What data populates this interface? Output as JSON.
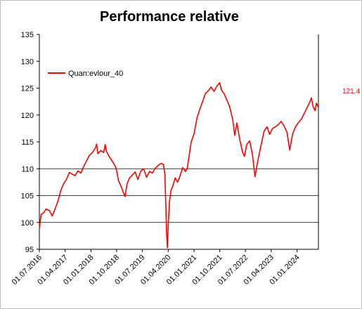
{
  "chart_data": {
    "type": "line",
    "title": "Performance relative",
    "xlabel": "",
    "ylabel": "",
    "ylim": [
      95,
      135
    ],
    "yticks": [
      95,
      100,
      105,
      110,
      115,
      120,
      125,
      130,
      135
    ],
    "gridlines_y": [
      95,
      100,
      105,
      110
    ],
    "xlim": [
      "2016-07-01",
      "2024-08-15"
    ],
    "xticks": [
      {
        "date": "2016-07-01",
        "label": "01.07.2016"
      },
      {
        "date": "2017-04-01",
        "label": "01.04.2017"
      },
      {
        "date": "2018-01-01",
        "label": "01.01.2018"
      },
      {
        "date": "2018-10-01",
        "label": "01.10.2018"
      },
      {
        "date": "2019-07-01",
        "label": "01.07.2019"
      },
      {
        "date": "2020-04-01",
        "label": "01.04.2020"
      },
      {
        "date": "2021-01-01",
        "label": "01.01.2021"
      },
      {
        "date": "2021-10-01",
        "label": "01.10.2021"
      },
      {
        "date": "2022-07-01",
        "label": "01.07.2022"
      },
      {
        "date": "2023-04-01",
        "label": "01.04.2023"
      },
      {
        "date": "2024-01-01",
        "label": "01.01.2024"
      }
    ],
    "legend_position": "top-left",
    "last_value_label": "121.4",
    "series": [
      {
        "name": "Quan:evlour_40",
        "color": "#ff0000",
        "points": [
          [
            "2016-07-01",
            99.0
          ],
          [
            "2016-07-20",
            101.5
          ],
          [
            "2016-08-15",
            101.8
          ],
          [
            "2016-09-10",
            102.5
          ],
          [
            "2016-10-15",
            102.2
          ],
          [
            "2016-11-15",
            101.2
          ],
          [
            "2016-12-15",
            102.5
          ],
          [
            "2017-01-15",
            104.0
          ],
          [
            "2017-02-15",
            106.0
          ],
          [
            "2017-03-15",
            107.2
          ],
          [
            "2017-04-15",
            108.0
          ],
          [
            "2017-05-15",
            109.3
          ],
          [
            "2017-06-15",
            109.0
          ],
          [
            "2017-07-15",
            108.7
          ],
          [
            "2017-08-15",
            109.6
          ],
          [
            "2017-09-15",
            109.2
          ],
          [
            "2017-10-15",
            110.4
          ],
          [
            "2017-11-15",
            111.5
          ],
          [
            "2017-12-15",
            112.5
          ],
          [
            "2018-01-15",
            113.0
          ],
          [
            "2018-02-15",
            113.8
          ],
          [
            "2018-03-01",
            114.6
          ],
          [
            "2018-03-15",
            112.8
          ],
          [
            "2018-04-15",
            113.4
          ],
          [
            "2018-05-15",
            113.0
          ],
          [
            "2018-06-01",
            114.5
          ],
          [
            "2018-06-15",
            113.2
          ],
          [
            "2018-07-15",
            112.2
          ],
          [
            "2018-08-15",
            111.4
          ],
          [
            "2018-09-15",
            110.5
          ],
          [
            "2018-10-01",
            109.6
          ],
          [
            "2018-10-20",
            107.8
          ],
          [
            "2018-11-15",
            106.8
          ],
          [
            "2018-12-10",
            105.6
          ],
          [
            "2018-12-28",
            104.8
          ],
          [
            "2019-01-20",
            107.2
          ],
          [
            "2019-02-15",
            108.3
          ],
          [
            "2019-03-15",
            108.8
          ],
          [
            "2019-04-15",
            109.4
          ],
          [
            "2019-05-15",
            108.0
          ],
          [
            "2019-06-15",
            109.6
          ],
          [
            "2019-07-15",
            110.0
          ],
          [
            "2019-08-15",
            108.4
          ],
          [
            "2019-09-15",
            109.5
          ],
          [
            "2019-10-15",
            109.2
          ],
          [
            "2019-11-15",
            110.1
          ],
          [
            "2019-12-15",
            110.6
          ],
          [
            "2020-01-15",
            111.0
          ],
          [
            "2020-02-10",
            110.8
          ],
          [
            "2020-02-25",
            109.0
          ],
          [
            "2020-03-05",
            104.0
          ],
          [
            "2020-03-15",
            98.0
          ],
          [
            "2020-03-23",
            95.3
          ],
          [
            "2020-04-01",
            99.5
          ],
          [
            "2020-04-15",
            104.0
          ],
          [
            "2020-05-01",
            106.0
          ],
          [
            "2020-05-20",
            106.8
          ],
          [
            "2020-06-15",
            108.3
          ],
          [
            "2020-07-10",
            107.5
          ],
          [
            "2020-08-01",
            108.5
          ],
          [
            "2020-09-01",
            110.2
          ],
          [
            "2020-10-01",
            109.5
          ],
          [
            "2020-10-20",
            110.0
          ],
          [
            "2020-11-10",
            112.5
          ],
          [
            "2020-12-01",
            115.0
          ],
          [
            "2021-01-01",
            116.5
          ],
          [
            "2021-02-01",
            119.5
          ],
          [
            "2021-03-01",
            121.0
          ],
          [
            "2021-04-01",
            122.5
          ],
          [
            "2021-05-01",
            124.0
          ],
          [
            "2021-06-01",
            124.5
          ],
          [
            "2021-07-01",
            125.2
          ],
          [
            "2021-08-01",
            124.4
          ],
          [
            "2021-09-01",
            125.4
          ],
          [
            "2021-10-01",
            126.0
          ],
          [
            "2021-10-20",
            124.6
          ],
          [
            "2021-11-15",
            124.0
          ],
          [
            "2021-12-15",
            122.8
          ],
          [
            "2022-01-15",
            121.5
          ],
          [
            "2022-02-15",
            119.2
          ],
          [
            "2022-03-10",
            116.2
          ],
          [
            "2022-04-01",
            118.5
          ],
          [
            "2022-05-01",
            115.5
          ],
          [
            "2022-06-01",
            113.0
          ],
          [
            "2022-06-20",
            112.3
          ],
          [
            "2022-07-15",
            114.5
          ],
          [
            "2022-08-15",
            115.2
          ],
          [
            "2022-09-15",
            112.5
          ],
          [
            "2022-10-10",
            108.5
          ],
          [
            "2022-11-10",
            111.5
          ],
          [
            "2022-12-10",
            114.0
          ],
          [
            "2023-01-15",
            117.0
          ],
          [
            "2023-02-15",
            117.8
          ],
          [
            "2023-03-15",
            116.4
          ],
          [
            "2023-04-15",
            117.5
          ],
          [
            "2023-05-15",
            117.8
          ],
          [
            "2023-06-15",
            118.2
          ],
          [
            "2023-07-15",
            118.8
          ],
          [
            "2023-08-15",
            118.0
          ],
          [
            "2023-09-15",
            116.8
          ],
          [
            "2023-10-15",
            113.5
          ],
          [
            "2023-11-15",
            116.5
          ],
          [
            "2023-12-15",
            117.8
          ],
          [
            "2024-01-15",
            118.6
          ],
          [
            "2024-02-15",
            119.2
          ],
          [
            "2024-03-15",
            120.2
          ],
          [
            "2024-04-20",
            121.5
          ],
          [
            "2024-05-15",
            122.4
          ],
          [
            "2024-06-01",
            123.2
          ],
          [
            "2024-06-20",
            121.5
          ],
          [
            "2024-07-10",
            120.8
          ],
          [
            "2024-07-25",
            122.2
          ],
          [
            "2024-08-15",
            121.4
          ]
        ]
      }
    ]
  }
}
